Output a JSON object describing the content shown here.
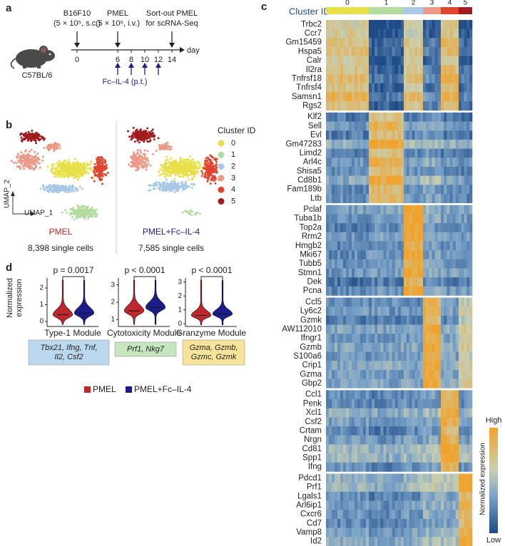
{
  "panel_a": {
    "label": "a",
    "injection1": "B16F10",
    "dose1": "(5 × 10⁵, s.c.)",
    "injection2": "PMEL",
    "dose2": "(5 × 10⁶, i.v.)",
    "sort1": "Sort-out PMEL",
    "sort2": "for scRNA-Seq",
    "days": [
      0,
      6,
      8,
      10,
      12,
      14
    ],
    "day_unit": "day",
    "event_days": [
      0,
      6,
      14
    ],
    "treatment_days": [
      6,
      8,
      10,
      12
    ],
    "treatment": "Fc–IL-4 (p.t.)",
    "mouse": "C57BL/6"
  },
  "panel_b": {
    "label": "b",
    "legend_title": "Cluster ID",
    "clusters": [
      {
        "name": "0",
        "color": "#e8e04a"
      },
      {
        "name": "1",
        "color": "#b4dba0"
      },
      {
        "name": "2",
        "color": "#a9c9e6"
      },
      {
        "name": "3",
        "color": "#eb9a88"
      },
      {
        "name": "4",
        "color": "#e0452f"
      },
      {
        "name": "5",
        "color": "#a11d1d"
      }
    ],
    "axis_y": "UMAP_2",
    "axis_x": "UMAP_1",
    "conditions": [
      {
        "name": "PMEL",
        "cells": "8,398 single cells",
        "color": "#c0272d"
      },
      {
        "name": "PMEL+Fc–IL-4",
        "cells": "7,585 single cells",
        "color": "#1c1c8a"
      }
    ]
  },
  "panel_c": {
    "label": "c",
    "legend_title": "Cluster ID",
    "gene_groups": [
      [
        "Trbc2",
        "Ccr7",
        "Gm15459",
        "Hspa5",
        "Calr",
        "Il2ra",
        "Tnfrsf18",
        "Tnfrsf4",
        "Samsn1",
        "Rgs2"
      ],
      [
        "Klf2",
        "Sell",
        "Evl",
        "Gm47283",
        "Limd2",
        "Arl4c",
        "Shisa5",
        "Cd8b1",
        "Fam189b",
        "Ltb"
      ],
      [
        "Pclaf",
        "Tuba1b",
        "Top2a",
        "Rrm2",
        "Hmgb2",
        "Mki67",
        "Tubb5",
        "Stmn1",
        "Dek",
        "Pcna"
      ],
      [
        "Ccl5",
        "Ly6c2",
        "Gzmk",
        "AW112010",
        "Ifngr1",
        "Gzmb",
        "S100a6",
        "Crip1",
        "Gzma",
        "Gbp2"
      ],
      [
        "Ccl1",
        "Penk",
        "Xcl1",
        "Csf2",
        "Crtam",
        "Nrgn",
        "Cd81",
        "Spp1",
        "Ifng"
      ],
      [
        "Pdcd1",
        "Prf1",
        "Lgals1",
        "Arl6ip1",
        "Cxcr6",
        "Cd7",
        "Vamp8",
        "Id2"
      ]
    ],
    "colorbar": {
      "high": "High",
      "low": "Low",
      "title": "Normalized expression"
    }
  },
  "panel_d": {
    "label": "d",
    "y_label": [
      "Normalized",
      "expression"
    ],
    "modules": [
      {
        "name": "Type-1 Module",
        "genes": [
          "Tbx21, Ifng, Tnf,",
          "Il2, Csf2"
        ],
        "p_value": "p = 0.0017",
        "ylim": [
          -0.3,
          2.6
        ],
        "yticks": [
          0,
          1,
          2
        ],
        "medians": [
          0.4,
          0.5
        ],
        "box_color": "#bcd8ee"
      },
      {
        "name": "Cytotoxicity Module",
        "genes": [
          "Prf1, Nkg7"
        ],
        "p_value": "p < 0.0001",
        "ylim": [
          0.6,
          3.4
        ],
        "yticks": [
          1,
          2,
          3
        ],
        "medians": [
          1.5,
          1.7
        ],
        "box_color": "#c6e6bf"
      },
      {
        "name": "Granzyme Module",
        "genes": [
          "Gzma, Gzmb,",
          "Gzmc, Gzmk"
        ],
        "p_value": "p < 0.0001",
        "ylim": [
          -0.2,
          3.3
        ],
        "yticks": [
          0,
          1,
          2,
          3
        ],
        "medians": [
          0.6,
          0.7
        ],
        "box_color": "#f6e49a"
      }
    ],
    "legend": [
      {
        "name": "PMEL",
        "color": "#c0272d"
      },
      {
        "name": "PMEL+Fc–IL-4",
        "color": "#1c1c8a"
      }
    ]
  }
}
